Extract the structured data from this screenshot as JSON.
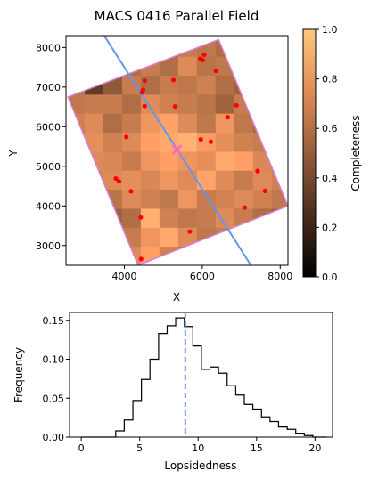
{
  "chart_data": [
    {
      "type": "heatmap",
      "title": "MACS 0416 Parallel Field",
      "xlabel": "X",
      "ylabel": "Y",
      "xlim": [
        2500,
        8200
      ],
      "ylim": [
        2500,
        8300
      ],
      "x_ticks": [
        4000,
        6000,
        8000
      ],
      "y_ticks": [
        3000,
        4000,
        5000,
        6000,
        7000,
        8000
      ],
      "colorbar": {
        "label": "Completeness",
        "range": [
          0.0,
          1.0
        ],
        "ticks": [
          0.0,
          0.2,
          0.4,
          0.6,
          0.8,
          1.0
        ],
        "tick_labels": [
          "0.0",
          "0.2",
          "0.4",
          "0.6",
          "0.8",
          "1.0"
        ],
        "cmap": "copper"
      },
      "grid": {
        "x0": 2500,
        "y0": 2500,
        "cell": 480,
        "cols": 12,
        "rows": 12,
        "values": [
          [
            0.55,
            0.62,
            0.6,
            0.7,
            0.8,
            0.65,
            0.58,
            0.6,
            0.72,
            0.6,
            0.55,
            0.5
          ],
          [
            0.55,
            0.62,
            0.6,
            0.62,
            0.75,
            0.85,
            0.7,
            0.6,
            0.62,
            0.6,
            0.55,
            0.5
          ],
          [
            0.6,
            0.6,
            0.5,
            0.55,
            0.88,
            0.65,
            0.6,
            0.62,
            0.7,
            0.62,
            0.55,
            0.5
          ],
          [
            0.6,
            0.62,
            0.58,
            0.7,
            0.65,
            0.6,
            0.75,
            0.62,
            0.66,
            0.7,
            0.65,
            0.6
          ],
          [
            0.62,
            0.65,
            0.7,
            0.72,
            0.68,
            0.75,
            0.7,
            0.82,
            0.7,
            0.62,
            0.7,
            0.65
          ],
          [
            0.62,
            0.7,
            0.68,
            0.62,
            0.75,
            0.8,
            0.75,
            0.72,
            0.85,
            0.8,
            0.68,
            0.62
          ],
          [
            0.62,
            0.72,
            0.65,
            0.7,
            0.8,
            0.85,
            0.9,
            0.78,
            0.72,
            0.65,
            0.62,
            0.6
          ],
          [
            0.65,
            0.7,
            0.55,
            0.62,
            0.75,
            0.82,
            0.7,
            0.6,
            0.75,
            0.6,
            0.55,
            0.55
          ],
          [
            0.6,
            0.62,
            0.62,
            0.55,
            0.7,
            0.65,
            0.62,
            0.58,
            0.5,
            0.62,
            0.6,
            0.55
          ],
          [
            0.6,
            0.3,
            0.45,
            0.62,
            0.55,
            0.62,
            0.6,
            0.65,
            0.55,
            0.5,
            0.55,
            0.5
          ],
          [
            0.6,
            0.55,
            0.62,
            0.55,
            0.62,
            0.55,
            0.7,
            0.58,
            0.6,
            0.62,
            0.55,
            0.5
          ],
          [
            0.6,
            0.6,
            0.6,
            0.6,
            0.62,
            0.55,
            0.62,
            0.6,
            0.55,
            0.25,
            0.4,
            0.5
          ]
        ]
      },
      "field_outline": {
        "color": "#d87fd8",
        "corners": [
          [
            2550,
            6750
          ],
          [
            6420,
            8200
          ],
          [
            8200,
            4000
          ],
          [
            4350,
            2500
          ]
        ]
      },
      "line": {
        "color": "#6495ed",
        "points": [
          [
            3480,
            8300
          ],
          [
            7250,
            2500
          ]
        ]
      },
      "center_marker": {
        "x": 5350,
        "y": 5420,
        "color": "#ff6eb4"
      },
      "points": {
        "color": "#ff0000",
        "xy": [
          [
            6050,
            7820
          ],
          [
            5950,
            7720
          ],
          [
            6010,
            7680
          ],
          [
            6350,
            7410
          ],
          [
            4520,
            7160
          ],
          [
            5260,
            7180
          ],
          [
            4480,
            6930
          ],
          [
            4450,
            6870
          ],
          [
            5300,
            6510
          ],
          [
            4520,
            6520
          ],
          [
            6880,
            6540
          ],
          [
            6650,
            6240
          ],
          [
            4050,
            5740
          ],
          [
            5960,
            5680
          ],
          [
            6220,
            5620
          ],
          [
            7420,
            4880
          ],
          [
            3780,
            4690
          ],
          [
            3860,
            4620
          ],
          [
            4170,
            4370
          ],
          [
            7610,
            4380
          ],
          [
            7090,
            3960
          ],
          [
            4420,
            3710
          ],
          [
            5680,
            3350
          ],
          [
            4430,
            2660
          ]
        ]
      }
    },
    {
      "type": "step",
      "xlabel": "Lopsidedness",
      "ylabel": "Frequency",
      "xlim": [
        -1,
        21.5
      ],
      "ylim": [
        0,
        0.16
      ],
      "x_ticks": [
        0,
        5,
        10,
        15,
        20
      ],
      "y_ticks": [
        0.0,
        0.05,
        0.1,
        0.15
      ],
      "y_tick_labels": [
        "0.00",
        "0.05",
        "0.10",
        "0.15"
      ],
      "bin_edges": [
        0,
        2,
        2.95,
        3.68,
        4.42,
        5.15,
        5.88,
        6.62,
        7.35,
        8.08,
        8.82,
        9.55,
        10.28,
        11.02,
        11.75,
        12.48,
        13.22,
        13.95,
        14.68,
        15.42,
        16.15,
        16.88,
        17.62,
        18.35,
        19.08,
        19.82,
        21
      ],
      "values": [
        0.0,
        0.0,
        0.008,
        0.022,
        0.047,
        0.074,
        0.1,
        0.133,
        0.143,
        0.153,
        0.142,
        0.117,
        0.087,
        0.09,
        0.082,
        0.066,
        0.054,
        0.042,
        0.036,
        0.026,
        0.02,
        0.013,
        0.01,
        0.005,
        0.002,
        0.0
      ],
      "vline": {
        "x": 8.9,
        "color": "#6495ed",
        "style": "dashed"
      },
      "series_color": "#000000"
    }
  ]
}
